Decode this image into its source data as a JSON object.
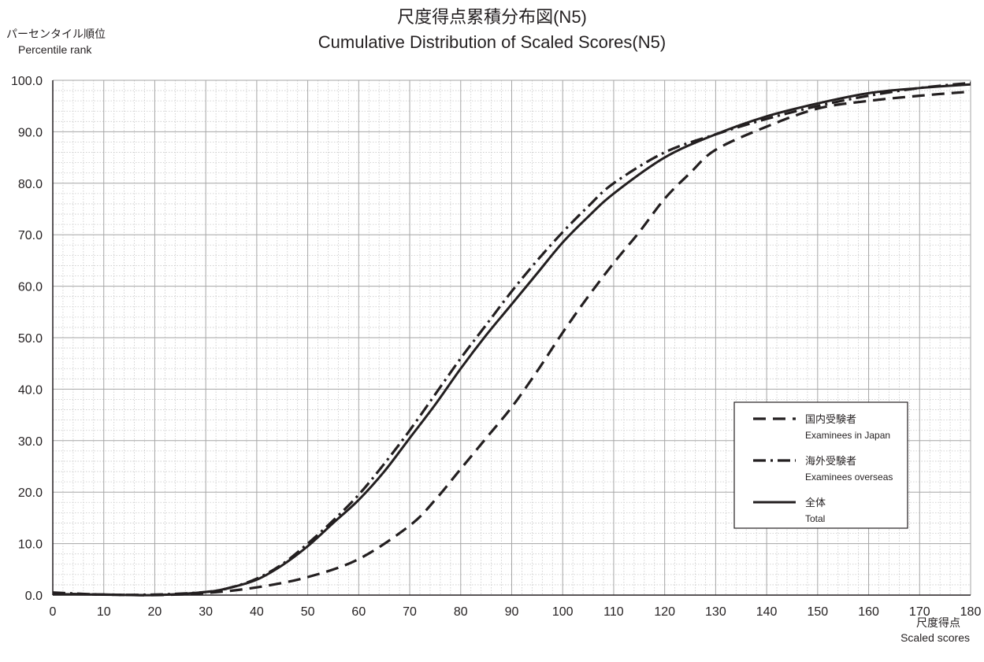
{
  "chart_data": {
    "type": "line",
    "title": "尺度得点累積分布図(N5)",
    "subtitle": "Cumulative Distribution of Scaled Scores(N5)",
    "ylabel": "パーセンタイル順位",
    "ylabel_en": "Percentile rank",
    "xlabel": "尺度得点",
    "xlabel_en": "Scaled scores",
    "xlim": [
      0,
      180
    ],
    "ylim": [
      0,
      100
    ],
    "x_ticks": [
      0,
      10,
      20,
      30,
      40,
      50,
      60,
      70,
      80,
      90,
      100,
      110,
      120,
      130,
      140,
      150,
      160,
      170,
      180
    ],
    "y_ticks": [
      "0.0",
      "10.0",
      "20.0",
      "30.0",
      "40.0",
      "50.0",
      "60.0",
      "70.0",
      "80.0",
      "90.0",
      "100.0"
    ],
    "grid": true,
    "legend_position": "right",
    "series": [
      {
        "name": "国内受験者",
        "name_en": "Examinees in Japan",
        "style": "dashed",
        "x": [
          0,
          10,
          20,
          30,
          40,
          50,
          60,
          70,
          75,
          80,
          85,
          90,
          95,
          100,
          105,
          110,
          115,
          120,
          125,
          130,
          140,
          150,
          160,
          170,
          180
        ],
        "y": [
          0.3,
          0.1,
          0.0,
          0.4,
          1.5,
          3.5,
          7.0,
          13.5,
          18.5,
          24.5,
          30.5,
          36.5,
          43.5,
          51.0,
          58.0,
          64.5,
          70.5,
          77.0,
          82.0,
          86.5,
          91.0,
          94.5,
          96.0,
          97.0,
          97.8
        ]
      },
      {
        "name": "海外受験者",
        "name_en": "Examinees overseas",
        "style": "dash-dot",
        "x": [
          0,
          10,
          20,
          30,
          35,
          40,
          45,
          50,
          55,
          60,
          65,
          70,
          75,
          80,
          85,
          90,
          95,
          100,
          105,
          110,
          120,
          130,
          140,
          150,
          160,
          170,
          180
        ],
        "y": [
          0.5,
          0.1,
          0.1,
          0.6,
          1.5,
          3.2,
          6.0,
          10.0,
          14.5,
          19.5,
          25.5,
          32.0,
          39.0,
          46.0,
          52.5,
          59.0,
          65.0,
          70.5,
          75.5,
          80.0,
          86.0,
          89.5,
          92.5,
          95.0,
          97.0,
          98.5,
          99.5
        ]
      },
      {
        "name": "全体",
        "name_en": "Total",
        "style": "solid",
        "x": [
          0,
          10,
          20,
          30,
          35,
          40,
          45,
          50,
          55,
          60,
          65,
          70,
          75,
          80,
          85,
          90,
          95,
          100,
          105,
          110,
          120,
          130,
          140,
          150,
          160,
          170,
          180
        ],
        "y": [
          0.2,
          0.1,
          0.0,
          0.6,
          1.5,
          3.0,
          5.8,
          9.5,
          14.0,
          18.5,
          24.0,
          30.5,
          37.0,
          44.0,
          50.5,
          56.5,
          62.5,
          68.5,
          73.5,
          78.0,
          85.0,
          89.5,
          93.0,
          95.5,
          97.5,
          98.5,
          99.2
        ]
      }
    ]
  }
}
